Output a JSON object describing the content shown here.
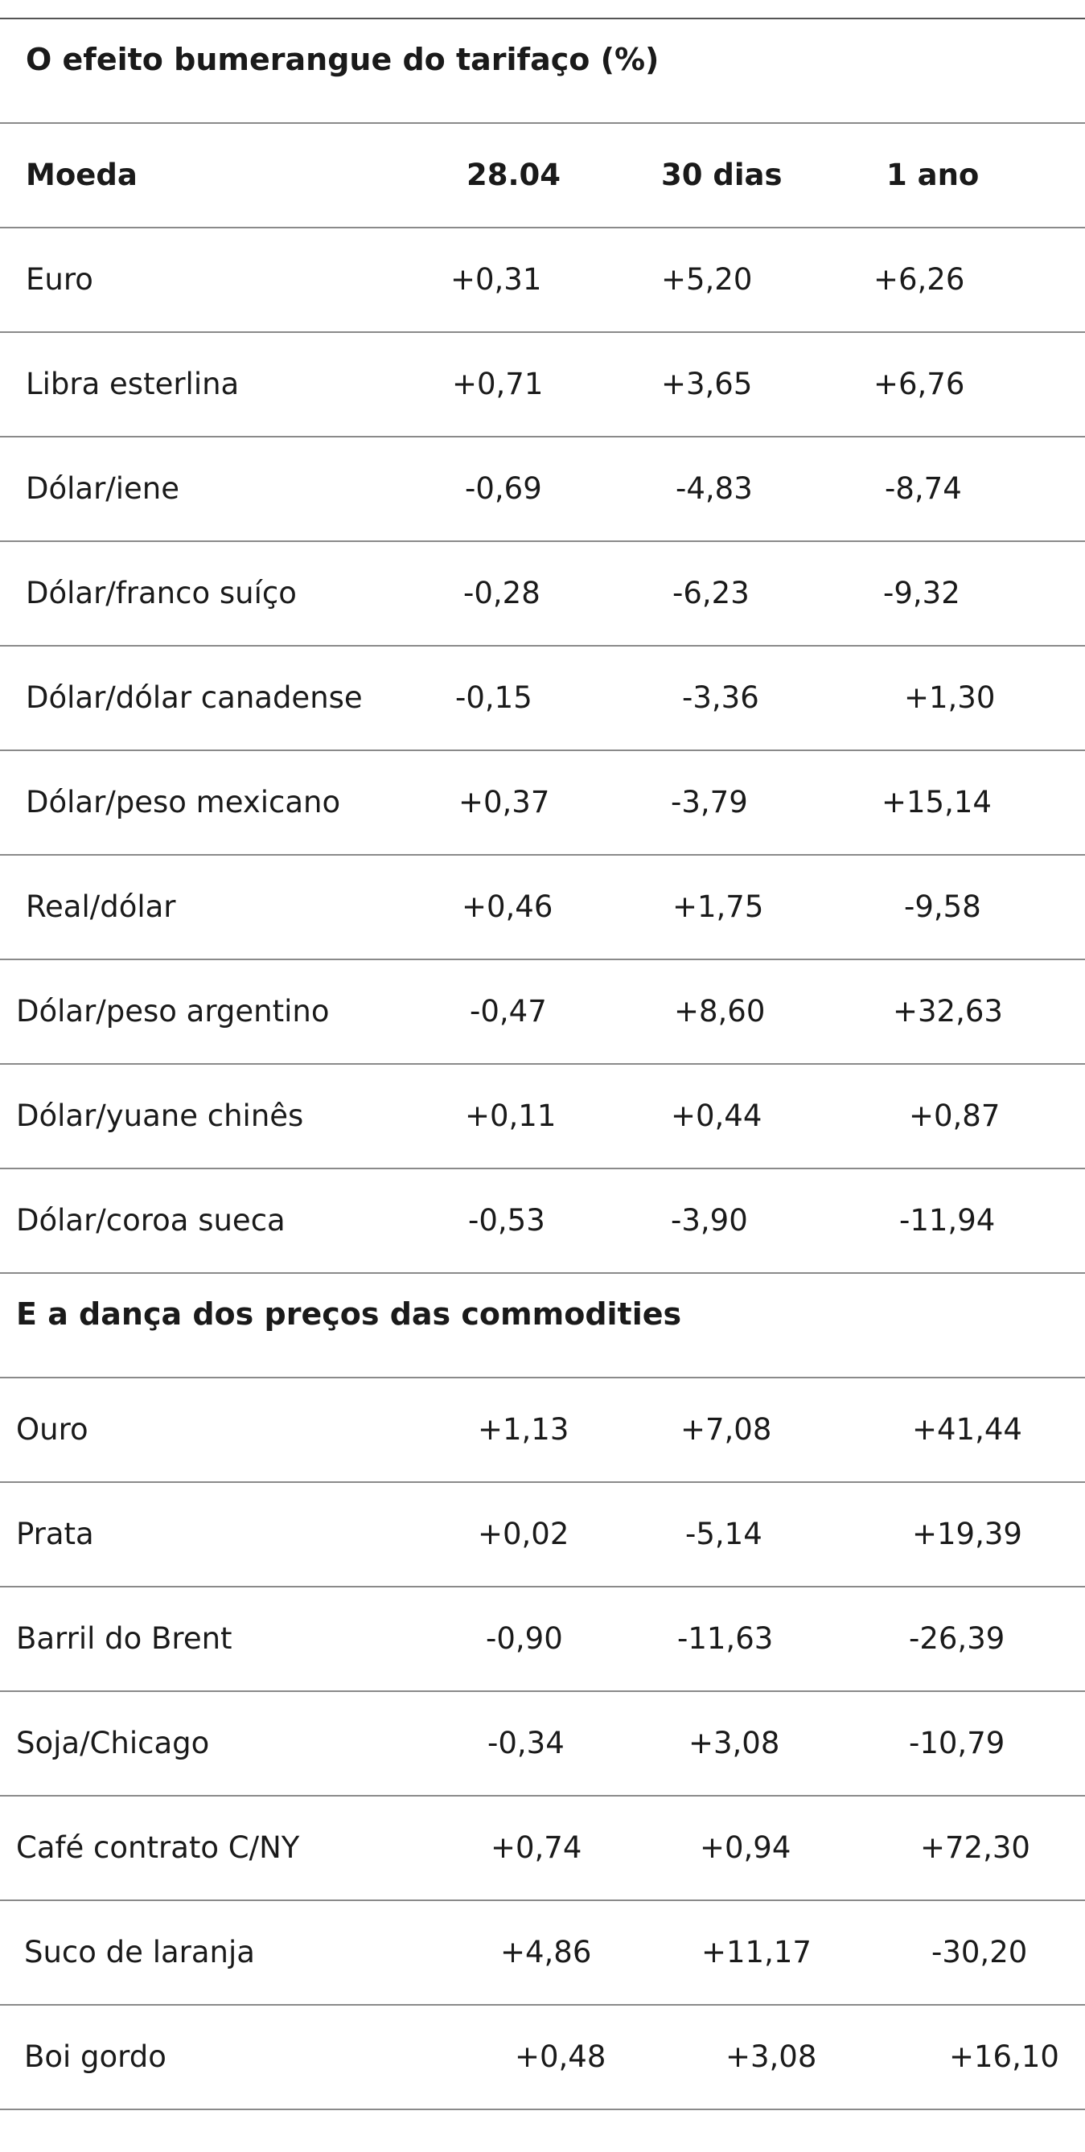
{
  "table": {
    "title": "O efeito bumerangue do tarifaço (%)",
    "headers": [
      "Moeda",
      "28.04",
      "30 dias",
      "1 ano"
    ],
    "currencies": [
      {
        "label": "Euro",
        "d": "+0,31",
        "m": "+5,20",
        "y": "+6,26"
      },
      {
        "label": "Libra esterlina",
        "d": "+0,71",
        "m": "+3,65",
        "y": "+6,76"
      },
      {
        "label": "Dólar/iene",
        "d": "-0,69",
        "m": "-4,83",
        "y": "-8,74"
      },
      {
        "label": "Dólar/franco suíço",
        "d": "-0,28",
        "m": "-6,23",
        "y": "-9,32"
      },
      {
        "label": "Dólar/dólar canadense",
        "d": "-0,15",
        "m": "-3,36",
        "y": "+1,30"
      },
      {
        "label": "Dólar/peso mexicano",
        "d": "+0,37",
        "m": "-3,79",
        "y": "+15,14"
      },
      {
        "label": "Real/dólar",
        "d": "+0,46",
        "m": "+1,75",
        "y": "-9,58"
      },
      {
        "label": "Dólar/peso argentino",
        "d": "-0,47",
        "m": "+8,60",
        "y": "+32,63"
      },
      {
        "label": "Dólar/yuane chinês",
        "d": "+0,11",
        "m": "+0,44",
        "y": "+0,87"
      },
      {
        "label": "Dólar/coroa sueca",
        "d": "-0,53",
        "m": "-3,90",
        "y": "-11,94"
      }
    ],
    "commodities_title": "E a dança dos preços das commodities",
    "commodities": [
      {
        "label": "Ouro",
        "d": "+1,13",
        "m": "+7,08",
        "y": "+41,44"
      },
      {
        "label": "Prata",
        "d": "+0,02",
        "m": "-5,14",
        "y": "+19,39"
      },
      {
        "label": "Barril do Brent",
        "d": "-0,90",
        "m": "-11,63",
        "y": "-26,39"
      },
      {
        "label": "Soja/Chicago",
        "d": "-0,34",
        "m": "+3,08",
        "y": "-10,79"
      },
      {
        "label": "Café contrato C/NY",
        "d": "+0,74",
        "m": "+0,94",
        "y": "+72,30"
      },
      {
        "label": "Suco de laranja",
        "d": "+4,86",
        "m": "+11,17",
        "y": "-30,20"
      },
      {
        "label": "Boi gordo",
        "d": "+0,48",
        "m": "+3,08",
        "y": "+16,10"
      }
    ]
  }
}
